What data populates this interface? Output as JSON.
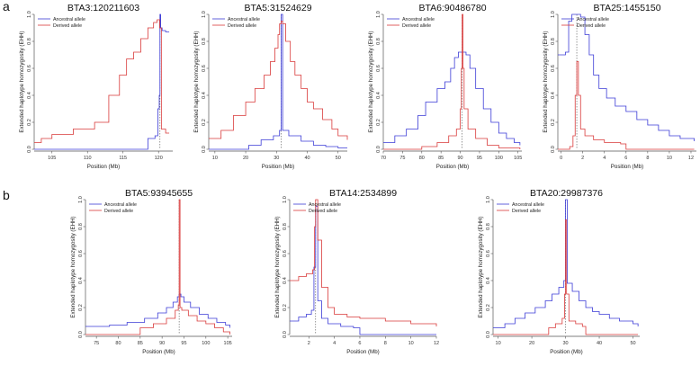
{
  "figure": {
    "panel_labels": [
      "a",
      "b"
    ]
  },
  "colors": {
    "ancestral": "#3b3bd6",
    "derived": "#d93a3a",
    "axis": "#555555",
    "marker": "#555555"
  },
  "chart_data": [
    {
      "type": "line",
      "panel": "a",
      "title": "BTA3:120211603",
      "xlabel": "Position (Mb)",
      "ylabel": "Extended haplotype homozygosity (EHH)",
      "xlim": [
        102.5,
        122
      ],
      "ylim": [
        0,
        1
      ],
      "xticks": [
        105,
        110,
        115,
        120
      ],
      "yticks": [
        0.0,
        0.2,
        0.4,
        0.6,
        0.8,
        1.0
      ],
      "marker_x": 120.2,
      "legend": [
        "Ancestral allele",
        "Derived allele"
      ],
      "series": [
        {
          "name": "Ancestral allele",
          "color": "#3b3bd6",
          "x": [
            102.5,
            117.5,
            118.5,
            119.5,
            119.9,
            120.1,
            120.2,
            120.3,
            120.5,
            121,
            121.5
          ],
          "y": [
            0.0,
            0.0,
            0.08,
            0.1,
            0.3,
            0.4,
            1.0,
            0.9,
            0.88,
            0.87,
            0.87
          ]
        },
        {
          "name": "Derived allele",
          "color": "#d93a3a",
          "x": [
            102.5,
            103.5,
            105,
            108,
            111,
            113,
            114.5,
            115.5,
            116.5,
            117.5,
            118.5,
            119.3,
            119.8,
            120.15,
            120.4,
            121,
            121.5
          ],
          "y": [
            0.05,
            0.08,
            0.11,
            0.15,
            0.2,
            0.4,
            0.55,
            0.67,
            0.72,
            0.82,
            0.9,
            0.94,
            0.96,
            0.9,
            0.15,
            0.12,
            0.12
          ]
        }
      ]
    },
    {
      "type": "line",
      "panel": "a",
      "title": "BTA5:31524629",
      "xlabel": "Position (Mb)",
      "ylabel": "Extended haplotype homozygosity (EHH)",
      "xlim": [
        8,
        53
      ],
      "ylim": [
        0,
        1
      ],
      "xticks": [
        10,
        20,
        30,
        40,
        50
      ],
      "yticks": [
        0.0,
        0.2,
        0.4,
        0.6,
        0.8,
        1.0
      ],
      "marker_x": 31.5,
      "legend": [
        "Ancestral allele",
        "Derived allele"
      ],
      "series": [
        {
          "name": "Ancestral allele",
          "color": "#3b3bd6",
          "x": [
            8,
            17,
            21,
            25,
            29,
            31,
            31.5,
            32,
            34,
            38,
            42,
            46,
            50,
            53
          ],
          "y": [
            0.0,
            0.0,
            0.03,
            0.07,
            0.1,
            0.14,
            1.0,
            0.14,
            0.1,
            0.06,
            0.03,
            0.02,
            0.01,
            0.01
          ]
        },
        {
          "name": "Derived allele",
          "color": "#d93a3a",
          "x": [
            8,
            12,
            16,
            20,
            23,
            26,
            28,
            29.5,
            30.5,
            31,
            31.5,
            32,
            33,
            34.5,
            36,
            38,
            40,
            42,
            45,
            48,
            50,
            53
          ],
          "y": [
            0.08,
            0.14,
            0.25,
            0.35,
            0.45,
            0.55,
            0.65,
            0.75,
            0.85,
            0.93,
            0.95,
            0.93,
            0.8,
            0.65,
            0.55,
            0.45,
            0.35,
            0.3,
            0.22,
            0.15,
            0.1,
            0.07
          ]
        }
      ]
    },
    {
      "type": "line",
      "panel": "a",
      "title": "BTA6:90486780",
      "xlabel": "Position (Mb)",
      "ylabel": "Extended haplotype homozygosity (EHH)",
      "xlim": [
        70,
        106
      ],
      "ylim": [
        0,
        1
      ],
      "xticks": [
        70,
        75,
        80,
        85,
        90,
        95,
        100,
        105
      ],
      "yticks": [
        0.0,
        0.2,
        0.4,
        0.6,
        0.8,
        1.0
      ],
      "marker_x": 90.5,
      "legend": [
        "Ancestral allele",
        "Derived allele"
      ],
      "series": [
        {
          "name": "Ancestral allele",
          "color": "#3b3bd6",
          "x": [
            70,
            73,
            76,
            79,
            81,
            84,
            86,
            87.5,
            88.5,
            89.5,
            90.5,
            91.5,
            92.5,
            94,
            96,
            98,
            100,
            102,
            104,
            105.5
          ],
          "y": [
            0.05,
            0.1,
            0.15,
            0.25,
            0.35,
            0.45,
            0.5,
            0.6,
            0.68,
            0.72,
            0.72,
            0.7,
            0.6,
            0.45,
            0.3,
            0.2,
            0.12,
            0.08,
            0.05,
            0.03
          ]
        },
        {
          "name": "Derived allele",
          "color": "#d93a3a",
          "x": [
            70,
            80,
            84,
            87,
            89,
            90,
            90.3,
            90.5,
            90.7,
            91,
            92,
            94,
            97,
            100,
            105.5
          ],
          "y": [
            0.0,
            0.02,
            0.05,
            0.1,
            0.15,
            0.3,
            0.6,
            1.0,
            0.6,
            0.3,
            0.15,
            0.08,
            0.03,
            0.01,
            0.0
          ]
        }
      ]
    },
    {
      "type": "line",
      "panel": "a",
      "title": "BTA25:1455150",
      "xlabel": "Position (Mb)",
      "ylabel": "Extended haplotype homozygosity (EHH)",
      "xlim": [
        -0.3,
        12.5
      ],
      "ylim": [
        0,
        1
      ],
      "xticks": [
        0,
        2,
        4,
        6,
        8,
        10,
        12
      ],
      "yticks": [
        0.0,
        0.2,
        0.4,
        0.6,
        0.8,
        1.0
      ],
      "marker_x": 1.45,
      "legend": [
        "Ancestral allele",
        "Derived allele"
      ],
      "series": [
        {
          "name": "Ancestral allele",
          "color": "#3b3bd6",
          "x": [
            -0.3,
            0.4,
            0.7,
            1.0,
            1.45,
            1.8,
            2.2,
            2.6,
            3.0,
            3.5,
            4.2,
            5.0,
            6.0,
            7.0,
            8.0,
            9.0,
            10.0,
            11.0,
            12.3
          ],
          "y": [
            0.7,
            0.72,
            0.95,
            1.0,
            1.0,
            0.98,
            0.85,
            0.7,
            0.55,
            0.45,
            0.38,
            0.32,
            0.28,
            0.22,
            0.18,
            0.14,
            0.1,
            0.08,
            0.06
          ]
        },
        {
          "name": "Derived allele",
          "color": "#d93a3a",
          "x": [
            -0.3,
            0.8,
            1.1,
            1.3,
            1.45,
            1.6,
            1.8,
            2.2,
            3.0,
            4.0,
            5.5,
            6.0,
            12.3
          ],
          "y": [
            0.0,
            0.02,
            0.1,
            0.4,
            0.65,
            0.4,
            0.15,
            0.1,
            0.07,
            0.05,
            0.04,
            0.0,
            0.0
          ]
        }
      ]
    },
    {
      "type": "line",
      "panel": "b",
      "title": "BTA5:93945655",
      "xlabel": "Position (Mb)",
      "ylabel": "Extended haplotype homozygosity (EHH)",
      "xlim": [
        72.5,
        106
      ],
      "ylim": [
        0,
        1
      ],
      "xticks": [
        75,
        80,
        85,
        90,
        95,
        100,
        105
      ],
      "yticks": [
        0.0,
        0.2,
        0.4,
        0.6,
        0.8,
        1.0
      ],
      "marker_x": 93.9,
      "legend": [
        "Ancestral allele",
        "Derived allele"
      ],
      "series": [
        {
          "name": "Ancestral allele",
          "color": "#3b3bd6",
          "x": [
            72.5,
            78,
            82,
            86,
            89,
            91,
            92.5,
            93.5,
            93.9,
            94.3,
            95,
            96.5,
            98.5,
            100.5,
            102.5,
            104.5,
            105.5
          ],
          "y": [
            0.06,
            0.07,
            0.09,
            0.12,
            0.16,
            0.2,
            0.24,
            0.28,
            0.3,
            0.28,
            0.24,
            0.2,
            0.15,
            0.12,
            0.09,
            0.07,
            0.05
          ]
        },
        {
          "name": "Derived allele",
          "color": "#d93a3a",
          "x": [
            72.5,
            84,
            85,
            88,
            91,
            93,
            93.7,
            93.9,
            94.1,
            94.5,
            96,
            98,
            100,
            102,
            104,
            105.5
          ],
          "y": [
            0.0,
            0.0,
            0.05,
            0.08,
            0.12,
            0.18,
            0.22,
            1.0,
            0.2,
            0.18,
            0.14,
            0.1,
            0.08,
            0.05,
            0.02,
            0.0
          ]
        }
      ]
    },
    {
      "type": "line",
      "panel": "b",
      "title": "BTA14:2534899",
      "xlabel": "Position (Mb)",
      "ylabel": "Extended haplotype homozygosity (EHH)",
      "xlim": [
        0.5,
        12
      ],
      "ylim": [
        0,
        1
      ],
      "xticks": [
        2,
        4,
        6,
        8,
        10,
        12
      ],
      "yticks": [
        0.0,
        0.2,
        0.4,
        0.6,
        0.8,
        1.0
      ],
      "marker_x": 2.53,
      "legend": [
        "Ancestral allele",
        "Derived allele"
      ],
      "series": [
        {
          "name": "Ancestral allele",
          "color": "#3b3bd6",
          "x": [
            0.5,
            1.2,
            1.8,
            2.2,
            2.4,
            2.53,
            2.7,
            3.0,
            3.5,
            4.5,
            5.5,
            6.0,
            12.0
          ],
          "y": [
            0.1,
            0.13,
            0.15,
            0.18,
            0.5,
            0.95,
            0.25,
            0.12,
            0.08,
            0.06,
            0.05,
            0.0,
            0.0
          ]
        },
        {
          "name": "Derived allele",
          "color": "#d93a3a",
          "x": [
            0.5,
            1.2,
            1.8,
            2.3,
            2.45,
            2.53,
            2.7,
            3.0,
            3.5,
            4.0,
            5.0,
            6.0,
            8.0,
            10.0,
            12.0
          ],
          "y": [
            0.4,
            0.43,
            0.45,
            0.48,
            0.8,
            1.0,
            0.7,
            0.35,
            0.2,
            0.15,
            0.13,
            0.12,
            0.1,
            0.08,
            0.06
          ]
        }
      ]
    },
    {
      "type": "line",
      "panel": "b",
      "title": "BTA20:29987376",
      "xlabel": "Position (Mb)",
      "ylabel": "Extended haplotype homozygosity (EHH)",
      "xlim": [
        8.5,
        52
      ],
      "ylim": [
        0,
        1
      ],
      "xticks": [
        10,
        20,
        30,
        40,
        50
      ],
      "yticks": [
        0.0,
        0.2,
        0.4,
        0.6,
        0.8,
        1.0
      ],
      "marker_x": 30.0,
      "legend": [
        "Ancestral allele",
        "Derived allele"
      ],
      "series": [
        {
          "name": "Ancestral allele",
          "color": "#3b3bd6",
          "x": [
            8.5,
            12,
            15,
            18,
            21,
            24,
            26,
            28,
            29.5,
            30,
            30.5,
            32,
            34,
            36,
            38,
            40,
            43,
            46,
            50,
            51.5
          ],
          "y": [
            0.05,
            0.08,
            0.12,
            0.16,
            0.2,
            0.25,
            0.3,
            0.35,
            0.4,
            1.0,
            0.38,
            0.32,
            0.25,
            0.2,
            0.17,
            0.15,
            0.12,
            0.1,
            0.08,
            0.06
          ]
        },
        {
          "name": "Derived allele",
          "color": "#d93a3a",
          "x": [
            8.5,
            24,
            25,
            27,
            29,
            29.7,
            30,
            30.3,
            31,
            33,
            35,
            36,
            51.5
          ],
          "y": [
            0.0,
            0.0,
            0.05,
            0.08,
            0.12,
            0.3,
            0.85,
            0.3,
            0.1,
            0.08,
            0.06,
            0.0,
            0.0
          ]
        }
      ]
    }
  ]
}
